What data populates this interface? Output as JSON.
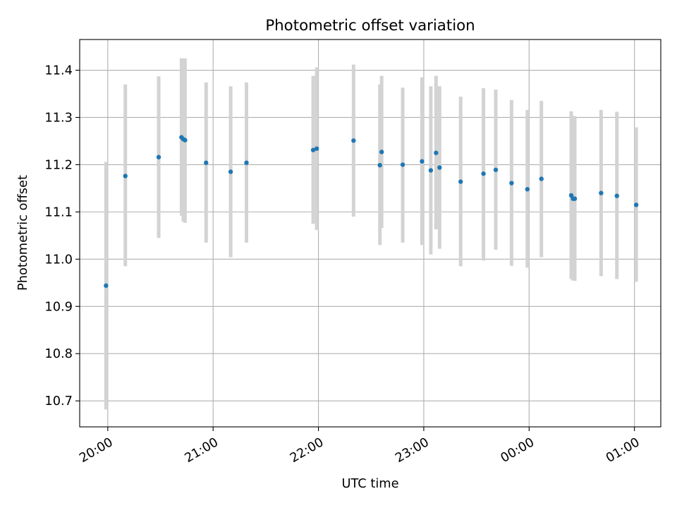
{
  "chart_data": {
    "type": "scatter",
    "title": "Photometric offset variation",
    "xlabel": "UTC time",
    "ylabel": "Photometric offset",
    "grid": true,
    "x_range": [
      "19:44",
      "01:15"
    ],
    "ylim": [
      10.645,
      11.465
    ],
    "x_ticks": [
      "20:00",
      "21:00",
      "22:00",
      "23:00",
      "00:00",
      "01:00"
    ],
    "y_ticks": [
      "10.7",
      "10.8",
      "10.9",
      "11.0",
      "11.1",
      "11.2",
      "11.3",
      "11.4"
    ],
    "colors": {
      "point": "#1f77b4",
      "errorbar": "#d3d3d3",
      "grid": "#b0b0b0"
    },
    "points": [
      {
        "x": "19:59",
        "y": 10.944,
        "lo": 10.682,
        "hi": 11.206
      },
      {
        "x": "20:10",
        "y": 11.176,
        "lo": 10.985,
        "hi": 11.37
      },
      {
        "x": "20:29",
        "y": 11.216,
        "lo": 11.045,
        "hi": 11.387
      },
      {
        "x": "20:42",
        "y": 11.258,
        "lo": 11.092,
        "hi": 11.425
      },
      {
        "x": "20:43",
        "y": 11.254,
        "lo": 11.08,
        "hi": 11.425
      },
      {
        "x": "20:44",
        "y": 11.252,
        "lo": 11.077,
        "hi": 11.425
      },
      {
        "x": "20:56",
        "y": 11.204,
        "lo": 11.035,
        "hi": 11.374
      },
      {
        "x": "21:10",
        "y": 11.185,
        "lo": 11.004,
        "hi": 11.366
      },
      {
        "x": "21:19",
        "y": 11.204,
        "lo": 11.035,
        "hi": 11.374
      },
      {
        "x": "21:57",
        "y": 11.231,
        "lo": 11.075,
        "hi": 11.388
      },
      {
        "x": "21:59",
        "y": 11.234,
        "lo": 11.062,
        "hi": 11.406
      },
      {
        "x": "22:20",
        "y": 11.251,
        "lo": 11.09,
        "hi": 11.412
      },
      {
        "x": "22:35",
        "y": 11.199,
        "lo": 11.03,
        "hi": 11.37
      },
      {
        "x": "22:36",
        "y": 11.227,
        "lo": 11.066,
        "hi": 11.388
      },
      {
        "x": "22:48",
        "y": 11.2,
        "lo": 11.035,
        "hi": 11.363
      },
      {
        "x": "22:59",
        "y": 11.207,
        "lo": 11.03,
        "hi": 11.385
      },
      {
        "x": "23:04",
        "y": 11.188,
        "lo": 11.01,
        "hi": 11.366
      },
      {
        "x": "23:07",
        "y": 11.225,
        "lo": 11.063,
        "hi": 11.388
      },
      {
        "x": "23:09",
        "y": 11.194,
        "lo": 11.022,
        "hi": 11.366
      },
      {
        "x": "23:21",
        "y": 11.164,
        "lo": 10.985,
        "hi": 11.344
      },
      {
        "x": "23:34",
        "y": 11.181,
        "lo": 10.997,
        "hi": 11.362
      },
      {
        "x": "23:41",
        "y": 11.189,
        "lo": 11.02,
        "hi": 11.359
      },
      {
        "x": "23:50",
        "y": 11.161,
        "lo": 10.986,
        "hi": 11.337
      },
      {
        "x": "23:59",
        "y": 11.148,
        "lo": 10.982,
        "hi": 11.316
      },
      {
        "x": "00:07",
        "y": 11.17,
        "lo": 11.004,
        "hi": 11.335
      },
      {
        "x": "00:24",
        "y": 11.135,
        "lo": 10.958,
        "hi": 11.313
      },
      {
        "x": "00:25",
        "y": 11.128,
        "lo": 10.955,
        "hi": 11.303
      },
      {
        "x": "00:26",
        "y": 11.128,
        "lo": 10.954,
        "hi": 11.303
      },
      {
        "x": "00:41",
        "y": 11.14,
        "lo": 10.964,
        "hi": 11.316
      },
      {
        "x": "00:50",
        "y": 11.134,
        "lo": 10.958,
        "hi": 11.312
      },
      {
        "x": "01:01",
        "y": 11.115,
        "lo": 10.952,
        "hi": 11.279
      }
    ]
  }
}
